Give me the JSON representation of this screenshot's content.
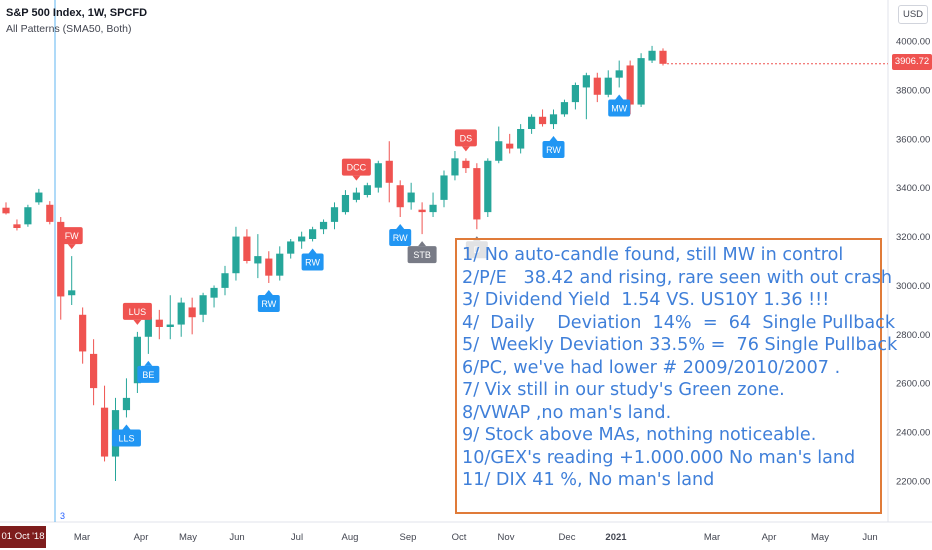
{
  "header": {
    "title": "S&P 500 Index, 1W, SPCFD",
    "indicator": "All Patterns (SMA50, Both)",
    "currency": "USD"
  },
  "price_tag": "3906.72",
  "date_tag": "01 Oct '18",
  "cursor_marker": "3",
  "notes": [
    "1/ No auto-candle found, still MW in control",
    "2/P/E   38.42 and rising, rare seen with out crash",
    "3/ Dividend Yield  1.54 VS. US10Y 1.36 !!!",
    "4/  Daily    Deviation  14%  =  64  Single Pullback",
    "5/  Weekly Deviation 33.5% =  76 Single Pullback",
    "6/PC, we've had lower # 2009/2010/2007 .",
    "7/ Vix still in our study's Green zone.",
    "8/VWAP ,no man's land.",
    "9/ Stock above MAs, nothing noticeable.",
    "10/GEX's reading +1.000.000 No man's land",
    "11/ DIX 41 %, No man's land"
  ],
  "colors": {
    "up": "#26a69a",
    "down": "#ef5350",
    "signal_blue": "#2196f3",
    "signal_red": "#ef5350",
    "signal_gray": "#787b86",
    "note_text": "#3f7fd9",
    "note_border": "#e07b39"
  },
  "chart_data": {
    "type": "candlestick",
    "title": "S&P 500 Index, 1W, SPCFD",
    "ylim": [
      2050,
      4110
    ],
    "y_ticks": [
      "4000.00",
      "3800.00",
      "3600.00",
      "3400.00",
      "3200.00",
      "3000.00",
      "2800.00",
      "2600.00",
      "2400.00",
      "2200.00"
    ],
    "x_ticks": [
      "Mar",
      "Apr",
      "May",
      "Jun",
      "Jul",
      "Aug",
      "Sep",
      "Oct",
      "Nov",
      "Dec",
      "2021",
      "Mar",
      "Apr",
      "May",
      "Jun"
    ],
    "candles": [
      {
        "o": 3318,
        "h": 3340,
        "l": 3290,
        "c": 3295
      },
      {
        "o": 3250,
        "h": 3270,
        "l": 3225,
        "c": 3235
      },
      {
        "o": 3250,
        "h": 3330,
        "l": 3240,
        "c": 3320
      },
      {
        "o": 3340,
        "h": 3395,
        "l": 3330,
        "c": 3380
      },
      {
        "o": 3330,
        "h": 3345,
        "l": 3250,
        "c": 3260
      },
      {
        "o": 3260,
        "h": 3280,
        "l": 2860,
        "c": 2955
      },
      {
        "o": 2960,
        "h": 3120,
        "l": 2920,
        "c": 2980
      },
      {
        "o": 2880,
        "h": 2910,
        "l": 2680,
        "c": 2730
      },
      {
        "o": 2720,
        "h": 2780,
        "l": 2510,
        "c": 2580
      },
      {
        "o": 2500,
        "h": 2590,
        "l": 2280,
        "c": 2300
      },
      {
        "o": 2300,
        "h": 2540,
        "l": 2200,
        "c": 2490
      },
      {
        "o": 2490,
        "h": 2620,
        "l": 2460,
        "c": 2540
      },
      {
        "o": 2600,
        "h": 2810,
        "l": 2560,
        "c": 2790
      },
      {
        "o": 2790,
        "h": 2880,
        "l": 2720,
        "c": 2870
      },
      {
        "o": 2860,
        "h": 2900,
        "l": 2780,
        "c": 2830
      },
      {
        "o": 2830,
        "h": 2960,
        "l": 2780,
        "c": 2840
      },
      {
        "o": 2840,
        "h": 2950,
        "l": 2790,
        "c": 2930
      },
      {
        "o": 2910,
        "h": 2950,
        "l": 2800,
        "c": 2870
      },
      {
        "o": 2880,
        "h": 2970,
        "l": 2850,
        "c": 2960
      },
      {
        "o": 2950,
        "h": 3000,
        "l": 2910,
        "c": 2990
      },
      {
        "o": 2990,
        "h": 3080,
        "l": 2960,
        "c": 3050
      },
      {
        "o": 3050,
        "h": 3240,
        "l": 3020,
        "c": 3200
      },
      {
        "o": 3200,
        "h": 3230,
        "l": 3090,
        "c": 3100
      },
      {
        "o": 3090,
        "h": 3210,
        "l": 3030,
        "c": 3120
      },
      {
        "o": 3110,
        "h": 3140,
        "l": 3010,
        "c": 3040
      },
      {
        "o": 3040,
        "h": 3160,
        "l": 3020,
        "c": 3130
      },
      {
        "o": 3130,
        "h": 3190,
        "l": 3110,
        "c": 3180
      },
      {
        "o": 3180,
        "h": 3220,
        "l": 3150,
        "c": 3200
      },
      {
        "o": 3190,
        "h": 3240,
        "l": 3180,
        "c": 3230
      },
      {
        "o": 3230,
        "h": 3270,
        "l": 3210,
        "c": 3260
      },
      {
        "o": 3260,
        "h": 3340,
        "l": 3230,
        "c": 3320
      },
      {
        "o": 3300,
        "h": 3390,
        "l": 3290,
        "c": 3370
      },
      {
        "o": 3350,
        "h": 3400,
        "l": 3340,
        "c": 3380
      },
      {
        "o": 3370,
        "h": 3420,
        "l": 3360,
        "c": 3410
      },
      {
        "o": 3400,
        "h": 3510,
        "l": 3380,
        "c": 3500
      },
      {
        "o": 3510,
        "h": 3590,
        "l": 3340,
        "c": 3420
      },
      {
        "o": 3410,
        "h": 3430,
        "l": 3280,
        "c": 3320
      },
      {
        "o": 3340,
        "h": 3420,
        "l": 3310,
        "c": 3380
      },
      {
        "o": 3310,
        "h": 3340,
        "l": 3210,
        "c": 3300
      },
      {
        "o": 3300,
        "h": 3380,
        "l": 3280,
        "c": 3330
      },
      {
        "o": 3350,
        "h": 3470,
        "l": 3320,
        "c": 3450
      },
      {
        "o": 3450,
        "h": 3550,
        "l": 3430,
        "c": 3520
      },
      {
        "o": 3510,
        "h": 3520,
        "l": 3460,
        "c": 3480
      },
      {
        "o": 3480,
        "h": 3500,
        "l": 3230,
        "c": 3270
      },
      {
        "o": 3300,
        "h": 3520,
        "l": 3280,
        "c": 3510
      },
      {
        "o": 3510,
        "h": 3650,
        "l": 3500,
        "c": 3590
      },
      {
        "o": 3580,
        "h": 3620,
        "l": 3540,
        "c": 3560
      },
      {
        "o": 3560,
        "h": 3660,
        "l": 3540,
        "c": 3640
      },
      {
        "o": 3640,
        "h": 3700,
        "l": 3620,
        "c": 3690
      },
      {
        "o": 3690,
        "h": 3720,
        "l": 3650,
        "c": 3660
      },
      {
        "o": 3660,
        "h": 3720,
        "l": 3640,
        "c": 3700
      },
      {
        "o": 3700,
        "h": 3760,
        "l": 3690,
        "c": 3750
      },
      {
        "o": 3750,
        "h": 3830,
        "l": 3720,
        "c": 3820
      },
      {
        "o": 3810,
        "h": 3870,
        "l": 3680,
        "c": 3860
      },
      {
        "o": 3850,
        "h": 3870,
        "l": 3750,
        "c": 3780
      },
      {
        "o": 3780,
        "h": 3880,
        "l": 3770,
        "c": 3850
      },
      {
        "o": 3850,
        "h": 3920,
        "l": 3810,
        "c": 3880
      },
      {
        "o": 3900,
        "h": 3920,
        "l": 3700,
        "c": 3740
      },
      {
        "o": 3740,
        "h": 3950,
        "l": 3730,
        "c": 3930
      },
      {
        "o": 3920,
        "h": 3980,
        "l": 3910,
        "c": 3960
      },
      {
        "o": 3960,
        "h": 3970,
        "l": 3900,
        "c": 3906.72
      }
    ],
    "signals": [
      {
        "label": "FW",
        "idx": 6,
        "pos": "above",
        "color": "red"
      },
      {
        "label": "LLS",
        "idx": 11,
        "pos": "below",
        "color": "blue"
      },
      {
        "label": "BE",
        "idx": 13,
        "pos": "below",
        "color": "blue"
      },
      {
        "label": "LUS",
        "idx": 12,
        "pos": "above",
        "color": "red"
      },
      {
        "label": "RW",
        "idx": 24,
        "pos": "below",
        "color": "blue"
      },
      {
        "label": "RW",
        "idx": 28,
        "pos": "below",
        "color": "blue"
      },
      {
        "label": "DCC",
        "idx": 32,
        "pos": "above",
        "color": "red"
      },
      {
        "label": "RW",
        "idx": 36,
        "pos": "below",
        "color": "blue"
      },
      {
        "label": "STB",
        "idx": 38,
        "pos": "below",
        "color": "gray"
      },
      {
        "label": "D",
        "idx": 43,
        "pos": "below",
        "color": "gray"
      },
      {
        "label": "DS",
        "idx": 42,
        "pos": "above",
        "color": "red"
      },
      {
        "label": "RW",
        "idx": 50,
        "pos": "below",
        "color": "blue"
      },
      {
        "label": "MW",
        "idx": 56,
        "pos": "below",
        "color": "blue"
      }
    ]
  }
}
